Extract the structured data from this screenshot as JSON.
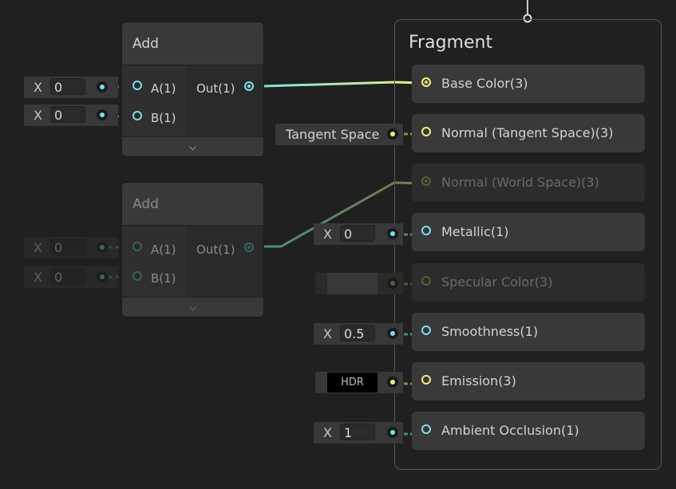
{
  "nodes": [
    {
      "title": "Add",
      "inputs": [
        "A(1)",
        "B(1)"
      ],
      "output": "Out(1)",
      "values": [
        "0",
        "0"
      ],
      "field_label": "X",
      "enabled": true
    },
    {
      "title": "Add",
      "inputs": [
        "A(1)",
        "B(1)"
      ],
      "output": "Out(1)",
      "values": [
        "0",
        "0"
      ],
      "field_label": "X",
      "enabled": false
    }
  ],
  "fragment": {
    "title": "Fragment",
    "slots": [
      {
        "label": "Base Color(3)",
        "enabled": true,
        "color": "#f0f07a"
      },
      {
        "label": "Normal (Tangent Space)(3)",
        "enabled": true,
        "color": "#f0f07a",
        "input": "Tangent Space"
      },
      {
        "label": "Normal (World Space)(3)",
        "enabled": false,
        "color": "#8a8a50"
      },
      {
        "label": "Metallic(1)",
        "enabled": true,
        "color": "#7adfe6",
        "input_label": "X",
        "input": "0"
      },
      {
        "label": "Specular Color(3)",
        "enabled": false,
        "color": "#8a8a50"
      },
      {
        "label": "Smoothness(1)",
        "enabled": true,
        "color": "#7adfe6",
        "input_label": "X",
        "input": "0.5"
      },
      {
        "label": "Emission(3)",
        "enabled": true,
        "color": "#f0f07a",
        "input": "HDR"
      },
      {
        "label": "Ambient Occlusion(1)",
        "enabled": true,
        "color": "#7adfe6",
        "input_label": "X",
        "input": "1"
      }
    ]
  },
  "colors": {
    "float": "#7adfe6",
    "vector3": "#f0f07a",
    "background": "#202020"
  }
}
